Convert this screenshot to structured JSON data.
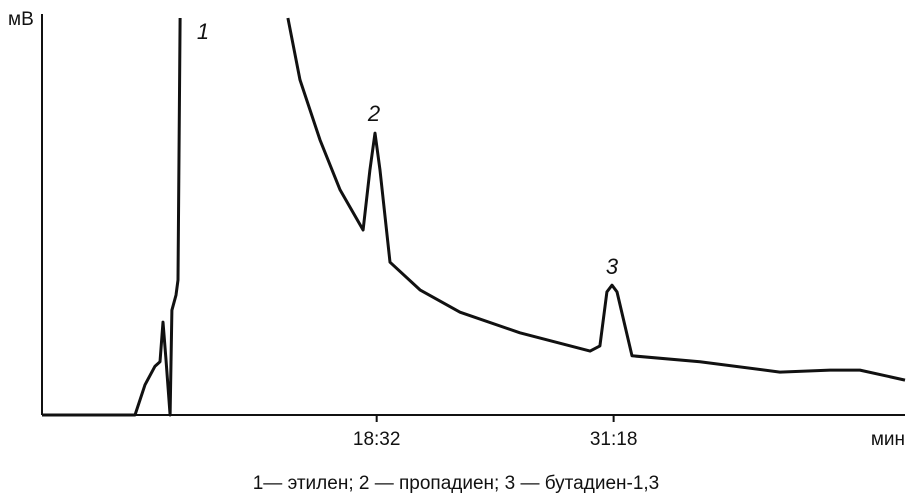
{
  "chart_data": {
    "type": "line",
    "y_label": "мВ",
    "x_label": "мин",
    "caption": "1— этилен; 2 — пропадиен; 3 — бутадиен-1,3",
    "annotations": [
      "1",
      "2",
      "3"
    ],
    "x": [
      0.5,
      5.51,
      6.05,
      6.59,
      6.86,
      7.02,
      7.18,
      7.4,
      7.5,
      7.72,
      7.83,
      7.94,
      null,
      13.75,
      14.4,
      15.48,
      16.56,
      17.8,
      18.17,
      18.44,
      18.71,
      19.25,
      20.87,
      23.02,
      26.25,
      30.03,
      30.56,
      30.94,
      31.21,
      31.48,
      32.29,
      35.95,
      40.26,
      42.96,
      44.57,
      47.0
    ],
    "series": [
      {
        "color": "#111111",
        "values": [
          0,
          0,
          7.6,
          12.3,
          13.4,
          23.4,
          13.9,
          0,
          26.4,
          30.2,
          34.0,
          100,
          null,
          100,
          84.4,
          69.3,
          56.7,
          46.6,
          61.7,
          71.0,
          61.7,
          38.5,
          31.5,
          25.9,
          20.7,
          16.1,
          17.4,
          31.0,
          32.7,
          31.0,
          14.9,
          13.4,
          10.8,
          11.3,
          11.3,
          8.8
        ]
      }
    ],
    "xlim": [
      0.5,
      47.0
    ],
    "ylim": [
      0,
      100
    ],
    "xticks": [
      {
        "value": 18.533,
        "label": "18:32"
      },
      {
        "value": 31.3,
        "label": "31:18"
      }
    ]
  }
}
